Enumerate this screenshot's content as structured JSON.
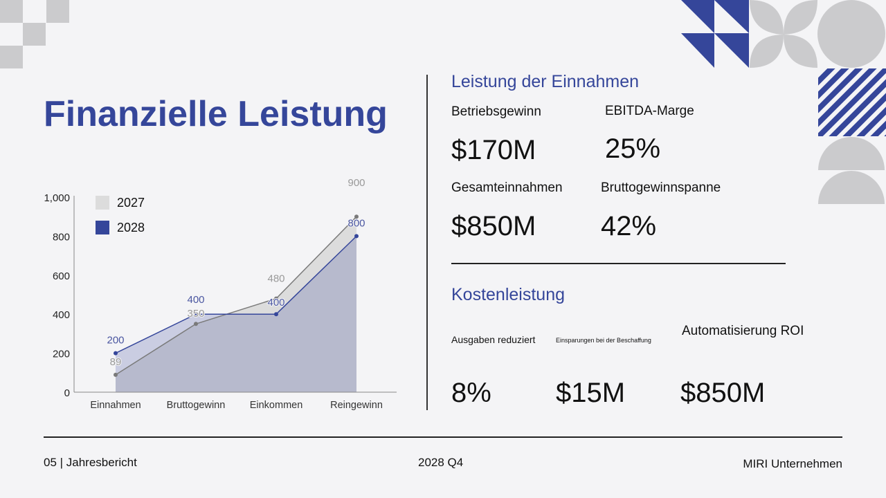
{
  "colors": {
    "accent": "#35469a",
    "gray_shape": "#cbcbcd",
    "series_2027": "#dcdcdc",
    "series_2028": "#35469a"
  },
  "title": "Finanzielle Leistung",
  "revenue": {
    "heading": "Leistung der Einnahmen",
    "metrics": [
      {
        "label": "Betriebsgewinn",
        "value": "$170M"
      },
      {
        "label": "EBITDA-Marge",
        "value": "25%"
      },
      {
        "label": "Gesamteinnahmen",
        "value": "$850M"
      },
      {
        "label": "Bruttogewinnspanne",
        "value": "42%"
      }
    ]
  },
  "cost": {
    "heading": "Kostenleistung",
    "metrics": [
      {
        "label": "Ausgaben reduziert",
        "value": "8%"
      },
      {
        "label": "Einsparungen bei der Beschaffung",
        "value": "$15M"
      },
      {
        "label": "Automatisierung ROI",
        "value": "$850M"
      }
    ]
  },
  "footer": {
    "left": "05 | Jahresbericht",
    "center": "2028 Q4",
    "right": "MIRI Unternehmen"
  },
  "chart_data": {
    "type": "area",
    "categories": [
      "Einnahmen",
      "Bruttogewinn",
      "Einkommen",
      "Reingewinn"
    ],
    "series": [
      {
        "name": "2027",
        "values": [
          89,
          350,
          480,
          900
        ],
        "color": "#dcdcdc"
      },
      {
        "name": "2028",
        "values": [
          200,
          400,
          400,
          800
        ],
        "color": "#35469a"
      }
    ],
    "ylim": [
      0,
      1000
    ],
    "yticks": [
      "0",
      "200",
      "400",
      "600",
      "800",
      "1,000"
    ],
    "legend": "top-left",
    "grid": false
  }
}
